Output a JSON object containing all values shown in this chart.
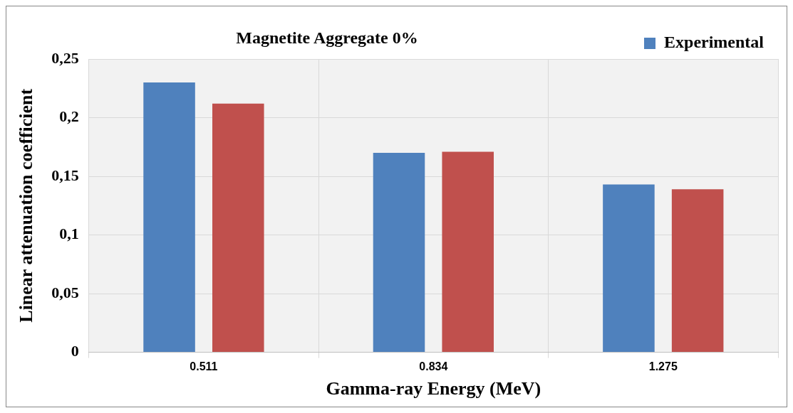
{
  "chart_data": {
    "type": "bar",
    "title": "Magnetite Aggregate 0%",
    "xlabel": "Gamma-ray Energy (MeV)",
    "ylabel": "Linear attenuation coefficient",
    "categories": [
      "0.511",
      "0.834",
      "1.275"
    ],
    "series": [
      {
        "name": "Experimental",
        "color": "#4f81bd",
        "values": [
          0.23,
          0.17,
          0.143
        ]
      },
      {
        "color": "#c0504d",
        "values": [
          0.212,
          0.171,
          0.139
        ]
      }
    ],
    "ylim": [
      0,
      0.25
    ],
    "yticks": [
      0,
      {
        "value": 0.05,
        "label": "0,05"
      },
      {
        "value": 0.1,
        "label": "0,1"
      },
      {
        "value": 0.15,
        "label": "0,15"
      },
      {
        "value": 0.2,
        "label": "0,2"
      },
      {
        "value": 0.25,
        "label": "0,25"
      }
    ],
    "grid": true,
    "legend": "top right"
  }
}
